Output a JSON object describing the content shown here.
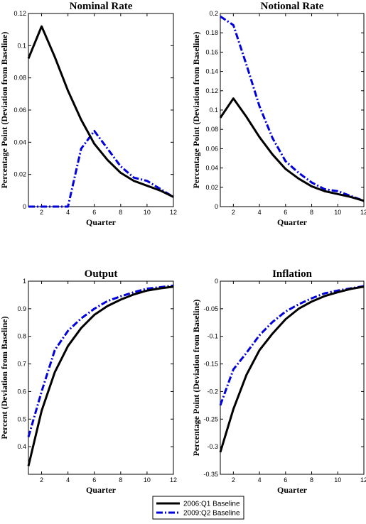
{
  "legend": {
    "placement": "bottom-center",
    "entries": [
      {
        "label": "2006:Q1 Baseline",
        "color": "#000000",
        "dash": "solid"
      },
      {
        "label": "2009:Q2 Baseline",
        "color": "#0000dd",
        "dash": "dash-dot"
      }
    ]
  },
  "chart_data": [
    {
      "type": "line",
      "title": "Nominal Rate",
      "xlabel": "Quarter",
      "ylabel": "Percentage Point (Deviation from Baseline)",
      "xlim": [
        1,
        12
      ],
      "ylim": [
        0,
        0.12
      ],
      "xticks": [
        2,
        4,
        6,
        8,
        10,
        12
      ],
      "yticks": [
        0,
        0.02,
        0.04,
        0.06,
        0.08,
        0.1,
        0.12
      ],
      "ytick_labels": [
        "0",
        "0.02",
        "0.04",
        "0.06",
        "0.08",
        "0.1",
        "0.12"
      ],
      "x": [
        1,
        2,
        3,
        4,
        5,
        6,
        7,
        8,
        9,
        10,
        11,
        12
      ],
      "series": [
        {
          "name": "2006:Q1 Baseline",
          "values": [
            0.092,
            0.112,
            0.093,
            0.072,
            0.054,
            0.039,
            0.029,
            0.021,
            0.016,
            0.013,
            0.01,
            0.006
          ]
        },
        {
          "name": "2009:Q2 Baseline",
          "values": [
            0.0,
            0.0,
            0.0,
            0.0,
            0.036,
            0.047,
            0.036,
            0.025,
            0.018,
            0.016,
            0.011,
            0.006
          ]
        }
      ]
    },
    {
      "type": "line",
      "title": "Notional Rate",
      "xlabel": "Quarter",
      "ylabel": "Percentage Point (Deviation from Baseline)",
      "xlim": [
        1,
        12
      ],
      "ylim": [
        0,
        0.2
      ],
      "xticks": [
        2,
        4,
        6,
        8,
        10,
        12
      ],
      "yticks": [
        0,
        0.02,
        0.04,
        0.06,
        0.08,
        0.1,
        0.12,
        0.14,
        0.16,
        0.18,
        0.2
      ],
      "ytick_labels": [
        "0",
        "0.02",
        "0.04",
        "0.06",
        "0.08",
        "0.1",
        "0.12",
        "0.14",
        "0.16",
        "0.18",
        "0.2"
      ],
      "x": [
        1,
        2,
        3,
        4,
        5,
        6,
        7,
        8,
        9,
        10,
        11,
        12
      ],
      "series": [
        {
          "name": "2006:Q1 Baseline",
          "values": [
            0.092,
            0.112,
            0.093,
            0.072,
            0.054,
            0.039,
            0.029,
            0.021,
            0.016,
            0.013,
            0.01,
            0.006
          ]
        },
        {
          "name": "2009:Q2 Baseline",
          "values": [
            0.197,
            0.188,
            0.147,
            0.104,
            0.071,
            0.047,
            0.035,
            0.025,
            0.018,
            0.016,
            0.011,
            0.006
          ]
        }
      ]
    },
    {
      "type": "line",
      "title": "Output",
      "xlabel": "Quarter",
      "ylabel": "Percent (Deviation from Baseline)",
      "xlim": [
        1,
        12
      ],
      "ylim": [
        0.3,
        1.0
      ],
      "xticks": [
        2,
        4,
        6,
        8,
        10,
        12
      ],
      "yticks": [
        0.4,
        0.5,
        0.6,
        0.7,
        0.8,
        0.9,
        1.0
      ],
      "ytick_labels": [
        "0.4",
        "0.5",
        "0.6",
        "0.7",
        "0.8",
        "0.9",
        "1"
      ],
      "x": [
        1,
        2,
        3,
        4,
        5,
        6,
        7,
        8,
        9,
        10,
        11,
        12
      ],
      "series": [
        {
          "name": "2006:Q1 Baseline",
          "values": [
            0.33,
            0.53,
            0.67,
            0.765,
            0.83,
            0.878,
            0.91,
            0.933,
            0.952,
            0.966,
            0.974,
            0.98
          ]
        },
        {
          "name": "2009:Q2 Baseline",
          "values": [
            0.435,
            0.6,
            0.75,
            0.82,
            0.865,
            0.9,
            0.928,
            0.945,
            0.96,
            0.973,
            0.978,
            0.984
          ]
        }
      ]
    },
    {
      "type": "line",
      "title": "Inflation",
      "xlabel": "Quarter",
      "ylabel": "Percentage Point (Deviation from Baseline)",
      "xlim": [
        1,
        12
      ],
      "ylim": [
        -0.35,
        0
      ],
      "xticks": [
        2,
        4,
        6,
        8,
        10,
        12
      ],
      "yticks": [
        -0.35,
        -0.3,
        -0.25,
        -0.2,
        -0.15,
        -0.1,
        -0.05,
        0
      ],
      "ytick_labels": [
        "-0.35",
        "-0.3",
        "-0.25",
        "-0.2",
        "-0.15",
        "-0.1",
        "-0.05",
        "0"
      ],
      "x": [
        1,
        2,
        3,
        4,
        5,
        6,
        7,
        8,
        9,
        10,
        11,
        12
      ],
      "series": [
        {
          "name": "2006:Q1 Baseline",
          "values": [
            -0.31,
            -0.232,
            -0.17,
            -0.125,
            -0.095,
            -0.069,
            -0.05,
            -0.037,
            -0.027,
            -0.02,
            -0.014,
            -0.01
          ]
        },
        {
          "name": "2009:Q2 Baseline",
          "values": [
            -0.225,
            -0.16,
            -0.13,
            -0.098,
            -0.074,
            -0.055,
            -0.042,
            -0.031,
            -0.022,
            -0.017,
            -0.013,
            -0.009
          ]
        }
      ]
    }
  ]
}
